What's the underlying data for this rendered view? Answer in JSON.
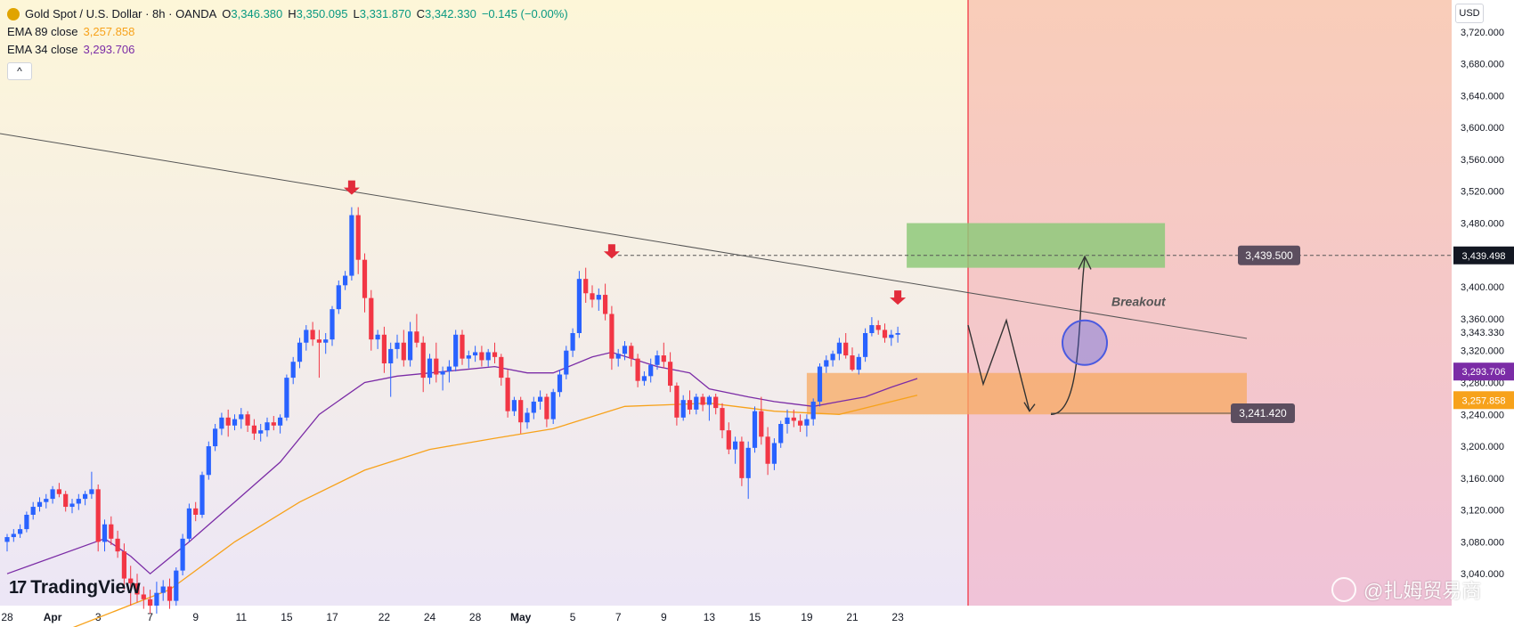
{
  "header": {
    "symbol_title": "Gold Spot / U.S. Dollar · 8h · OANDA",
    "ohlc": [
      {
        "k": "O",
        "v": "3,346.380"
      },
      {
        "k": "H",
        "v": "3,350.095"
      },
      {
        "k": "L",
        "v": "3,331.870"
      },
      {
        "k": "C",
        "v": "3,342.330"
      }
    ],
    "change": "−0.145 (−0.00%)",
    "ema89_label": "EMA 89 close",
    "ema89_value": "3,257.858",
    "ema34_label": "EMA 34 close",
    "ema34_value": "3,293.706",
    "collapse_icon": "^"
  },
  "currency_button": "USD",
  "colors": {
    "up": "#2962ff",
    "down": "#f23645",
    "ema89": "#f7a21b",
    "ema34": "#7b2ca6",
    "trendline": "#555555",
    "vline": "#f23645",
    "green_zone": "#8ec97a",
    "orange_zone": "#f7a962"
  },
  "chart_data": {
    "type": "candlestick",
    "symbol": "XAUUSD",
    "interval": "8h",
    "y_range": [
      3000,
      3760
    ],
    "y_ticks": [
      3040,
      3080,
      3120,
      3160,
      3200,
      3240,
      3280,
      3320,
      3360,
      3400,
      3480,
      3520,
      3560,
      3600,
      3640,
      3680,
      3720
    ],
    "x_labels": [
      "28",
      "Apr",
      "3",
      "7",
      "9",
      "11",
      "15",
      "17",
      "22",
      "24",
      "28",
      "May",
      "5",
      "7",
      "9",
      "13",
      "15",
      "19",
      "21",
      "23"
    ],
    "candles": [
      [
        3080,
        3090,
        3068,
        3086
      ],
      [
        3086,
        3096,
        3080,
        3090
      ],
      [
        3090,
        3102,
        3085,
        3096
      ],
      [
        3096,
        3118,
        3092,
        3114
      ],
      [
        3114,
        3130,
        3108,
        3124
      ],
      [
        3124,
        3136,
        3118,
        3130
      ],
      [
        3130,
        3140,
        3122,
        3134
      ],
      [
        3134,
        3150,
        3128,
        3146
      ],
      [
        3146,
        3154,
        3136,
        3140
      ],
      [
        3140,
        3144,
        3118,
        3124
      ],
      [
        3124,
        3134,
        3116,
        3128
      ],
      [
        3128,
        3140,
        3120,
        3134
      ],
      [
        3134,
        3144,
        3126,
        3140
      ],
      [
        3140,
        3168,
        3134,
        3146
      ],
      [
        3146,
        3152,
        3068,
        3080
      ],
      [
        3080,
        3108,
        3068,
        3102
      ],
      [
        3102,
        3112,
        3076,
        3084
      ],
      [
        3084,
        3094,
        3060,
        3068
      ],
      [
        3068,
        3078,
        3020,
        3034
      ],
      [
        3034,
        3050,
        3000,
        3028
      ],
      [
        3028,
        3040,
        3004,
        3014
      ],
      [
        3014,
        3024,
        2996,
        3008
      ],
      [
        3008,
        3020,
        2990,
        3000
      ],
      [
        3000,
        3030,
        2990,
        3016
      ],
      [
        3016,
        3032,
        3006,
        3024
      ],
      [
        3024,
        3034,
        2996,
        3006
      ],
      [
        3006,
        3048,
        3000,
        3044
      ],
      [
        3044,
        3090,
        3038,
        3084
      ],
      [
        3084,
        3128,
        3080,
        3122
      ],
      [
        3122,
        3130,
        3106,
        3114
      ],
      [
        3114,
        3168,
        3110,
        3164
      ],
      [
        3164,
        3206,
        3158,
        3200
      ],
      [
        3200,
        3228,
        3194,
        3222
      ],
      [
        3222,
        3242,
        3214,
        3236
      ],
      [
        3236,
        3246,
        3212,
        3226
      ],
      [
        3226,
        3240,
        3220,
        3234
      ],
      [
        3234,
        3248,
        3222,
        3240
      ],
      [
        3240,
        3244,
        3218,
        3226
      ],
      [
        3226,
        3234,
        3208,
        3216
      ],
      [
        3216,
        3228,
        3206,
        3220
      ],
      [
        3220,
        3236,
        3212,
        3230
      ],
      [
        3230,
        3238,
        3220,
        3226
      ],
      [
        3226,
        3240,
        3216,
        3236
      ],
      [
        3236,
        3290,
        3232,
        3286
      ],
      [
        3286,
        3312,
        3278,
        3306
      ],
      [
        3306,
        3336,
        3298,
        3330
      ],
      [
        3330,
        3352,
        3320,
        3346
      ],
      [
        3346,
        3356,
        3326,
        3334
      ],
      [
        3334,
        3346,
        3286,
        3330
      ],
      [
        3330,
        3342,
        3316,
        3334
      ],
      [
        3334,
        3376,
        3326,
        3372
      ],
      [
        3372,
        3408,
        3366,
        3402
      ],
      [
        3402,
        3420,
        3396,
        3414
      ],
      [
        3414,
        3500,
        3408,
        3490
      ],
      [
        3490,
        3500,
        3416,
        3434
      ],
      [
        3434,
        3442,
        3368,
        3386
      ],
      [
        3386,
        3396,
        3320,
        3334
      ],
      [
        3334,
        3346,
        3322,
        3340
      ],
      [
        3340,
        3350,
        3292,
        3304
      ],
      [
        3304,
        3330,
        3262,
        3322
      ],
      [
        3322,
        3340,
        3310,
        3330
      ],
      [
        3330,
        3346,
        3300,
        3308
      ],
      [
        3308,
        3356,
        3300,
        3344
      ],
      [
        3344,
        3366,
        3324,
        3330
      ],
      [
        3330,
        3338,
        3268,
        3286
      ],
      [
        3286,
        3316,
        3278,
        3310
      ],
      [
        3310,
        3330,
        3280,
        3290
      ],
      [
        3290,
        3300,
        3270,
        3294
      ],
      [
        3294,
        3308,
        3280,
        3300
      ],
      [
        3300,
        3346,
        3294,
        3340
      ],
      [
        3340,
        3346,
        3302,
        3310
      ],
      [
        3310,
        3320,
        3298,
        3314
      ],
      [
        3314,
        3326,
        3306,
        3318
      ],
      [
        3318,
        3326,
        3300,
        3308
      ],
      [
        3308,
        3322,
        3300,
        3318
      ],
      [
        3318,
        3330,
        3304,
        3312
      ],
      [
        3312,
        3316,
        3276,
        3286
      ],
      [
        3286,
        3296,
        3236,
        3244
      ],
      [
        3244,
        3262,
        3238,
        3258
      ],
      [
        3258,
        3262,
        3216,
        3230
      ],
      [
        3230,
        3248,
        3222,
        3242
      ],
      [
        3242,
        3262,
        3234,
        3256
      ],
      [
        3256,
        3270,
        3246,
        3262
      ],
      [
        3262,
        3266,
        3224,
        3234
      ],
      [
        3234,
        3272,
        3228,
        3268
      ],
      [
        3268,
        3296,
        3262,
        3290
      ],
      [
        3290,
        3326,
        3284,
        3320
      ],
      [
        3320,
        3348,
        3312,
        3342
      ],
      [
        3342,
        3420,
        3336,
        3410
      ],
      [
        3410,
        3424,
        3380,
        3392
      ],
      [
        3392,
        3402,
        3374,
        3384
      ],
      [
        3384,
        3398,
        3370,
        3390
      ],
      [
        3390,
        3404,
        3358,
        3366
      ],
      [
        3366,
        3376,
        3296,
        3310
      ],
      [
        3310,
        3322,
        3300,
        3316
      ],
      [
        3316,
        3332,
        3308,
        3326
      ],
      [
        3326,
        3330,
        3300,
        3310
      ],
      [
        3310,
        3316,
        3274,
        3282
      ],
      [
        3282,
        3294,
        3276,
        3288
      ],
      [
        3288,
        3310,
        3280,
        3302
      ],
      [
        3302,
        3320,
        3296,
        3314
      ],
      [
        3314,
        3330,
        3298,
        3306
      ],
      [
        3306,
        3318,
        3268,
        3276
      ],
      [
        3276,
        3280,
        3226,
        3236
      ],
      [
        3236,
        3264,
        3232,
        3258
      ],
      [
        3258,
        3270,
        3240,
        3246
      ],
      [
        3246,
        3266,
        3240,
        3262
      ],
      [
        3262,
        3266,
        3244,
        3252
      ],
      [
        3252,
        3264,
        3232,
        3262
      ],
      [
        3262,
        3266,
        3240,
        3248
      ],
      [
        3248,
        3254,
        3210,
        3220
      ],
      [
        3220,
        3230,
        3190,
        3196
      ],
      [
        3196,
        3212,
        3178,
        3206
      ],
      [
        3206,
        3212,
        3150,
        3160
      ],
      [
        3160,
        3206,
        3134,
        3198
      ],
      [
        3198,
        3250,
        3192,
        3244
      ],
      [
        3244,
        3262,
        3202,
        3212
      ],
      [
        3212,
        3224,
        3164,
        3178
      ],
      [
        3178,
        3210,
        3170,
        3204
      ],
      [
        3204,
        3232,
        3198,
        3228
      ],
      [
        3228,
        3246,
        3216,
        3236
      ],
      [
        3236,
        3246,
        3224,
        3232
      ],
      [
        3232,
        3240,
        3218,
        3226
      ],
      [
        3226,
        3240,
        3212,
        3234
      ],
      [
        3234,
        3260,
        3226,
        3256
      ],
      [
        3256,
        3304,
        3250,
        3300
      ],
      [
        3300,
        3314,
        3292,
        3308
      ],
      [
        3308,
        3320,
        3300,
        3316
      ],
      [
        3316,
        3336,
        3308,
        3330
      ],
      [
        3330,
        3342,
        3310,
        3314
      ],
      [
        3314,
        3324,
        3294,
        3296
      ],
      [
        3296,
        3316,
        3290,
        3312
      ],
      [
        3312,
        3348,
        3306,
        3342
      ],
      [
        3342,
        3362,
        3338,
        3352
      ],
      [
        3352,
        3358,
        3340,
        3346
      ],
      [
        3346,
        3354,
        3330,
        3336
      ],
      [
        3336,
        3346,
        3326,
        3340
      ],
      [
        3340,
        3350,
        3330,
        3342
      ]
    ],
    "ema34_points": [
      [
        0,
        3040
      ],
      [
        15,
        3084
      ],
      [
        19,
        3062
      ],
      [
        22,
        3040
      ],
      [
        28,
        3080
      ],
      [
        35,
        3130
      ],
      [
        42,
        3180
      ],
      [
        48,
        3240
      ],
      [
        55,
        3280
      ],
      [
        60,
        3288
      ],
      [
        70,
        3296
      ],
      [
        75,
        3300
      ],
      [
        80,
        3292
      ],
      [
        84,
        3292
      ],
      [
        90,
        3312
      ],
      [
        93,
        3318
      ],
      [
        100,
        3300
      ],
      [
        105,
        3292
      ],
      [
        108,
        3272
      ],
      [
        114,
        3262
      ],
      [
        118,
        3256
      ],
      [
        124,
        3250
      ],
      [
        128,
        3256
      ],
      [
        132,
        3262
      ],
      [
        136,
        3274
      ],
      [
        140,
        3285
      ]
    ],
    "ema89_points": [
      [
        0,
        2940
      ],
      [
        20,
        3004
      ],
      [
        25,
        3020
      ],
      [
        35,
        3080
      ],
      [
        45,
        3130
      ],
      [
        55,
        3170
      ],
      [
        65,
        3196
      ],
      [
        75,
        3210
      ],
      [
        84,
        3222
      ],
      [
        95,
        3250
      ],
      [
        108,
        3254
      ],
      [
        118,
        3244
      ],
      [
        128,
        3240
      ],
      [
        134,
        3252
      ],
      [
        140,
        3264
      ]
    ],
    "markers": [
      {
        "index": 53,
        "price": 3500
      },
      {
        "index": 93,
        "price": 3420
      },
      {
        "index": 137,
        "price": 3362
      }
    ],
    "annotations": {
      "breakout_label": "Breakout",
      "green_zone": [
        3424,
        3480
      ],
      "orange_zone": [
        3240,
        3292
      ],
      "target_price_label": "3,439.500",
      "support_price_label": "3,241.420",
      "dashed_level": 3439.5
    },
    "axis_tags": [
      {
        "value": 3439.498,
        "label": "3,439.498",
        "color": "#131722"
      },
      {
        "value": 3343.33,
        "label": "3,343.330",
        "color": "none"
      },
      {
        "value": 3293.706,
        "label": "3,293.706",
        "color": "#7b2ca6"
      },
      {
        "value": 3257.858,
        "label": "3,257.858",
        "color": "#f7a21b"
      }
    ]
  },
  "branding": {
    "logo_text": "TradingView",
    "logo_mark": "17",
    "watermark_text": "@扎姆贸易商"
  }
}
